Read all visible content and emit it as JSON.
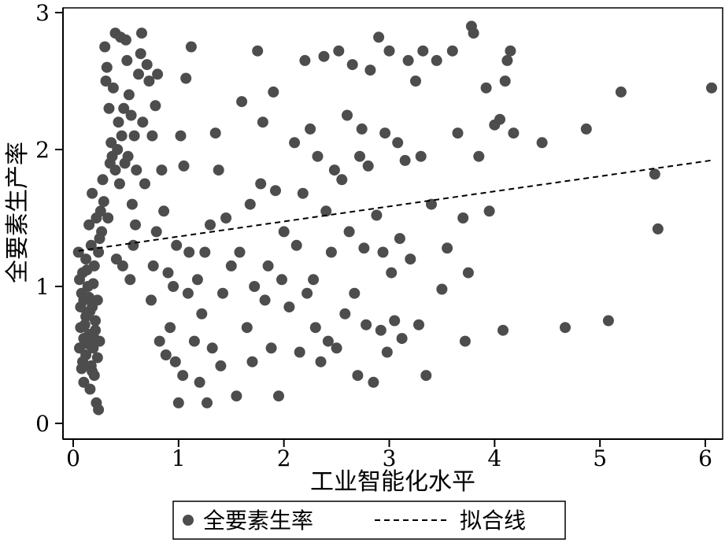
{
  "chart_data": {
    "type": "scatter",
    "title": "",
    "xlabel": "工业智能化水平",
    "ylabel": "全要素生产率",
    "xlim": [
      0,
      6.1
    ],
    "ylim": [
      0,
      3.0
    ],
    "xticks": [
      0,
      1,
      2,
      3,
      4,
      5,
      6
    ],
    "yticks": [
      0,
      1,
      2,
      3
    ],
    "xtick_labels": [
      "0",
      "1",
      "2",
      "3",
      "4",
      "5",
      "6"
    ],
    "ytick_labels": [
      "0",
      "1",
      "2",
      "3"
    ],
    "grid": false,
    "legend": {
      "position": "bottom",
      "entries": [
        {
          "label": "全要素生率",
          "marker": "dot"
        },
        {
          "label": "拟合线",
          "marker": "dashed-line"
        }
      ]
    },
    "point_color": "#4d4d4d",
    "fit_line": {
      "x": [
        0.05,
        6.05
      ],
      "y": [
        1.26,
        1.92
      ]
    },
    "series": [
      {
        "name": "全要素生率",
        "points": [
          [
            0.05,
            1.25
          ],
          [
            0.06,
            1.05
          ],
          [
            0.07,
            0.7
          ],
          [
            0.08,
            0.4
          ],
          [
            0.09,
            1.1
          ],
          [
            0.1,
            0.3
          ],
          [
            0.1,
            0.9
          ],
          [
            0.11,
            0.6
          ],
          [
            0.12,
            1.2
          ],
          [
            0.12,
            0.5
          ],
          [
            0.13,
            0.8
          ],
          [
            0.14,
            1.0
          ],
          [
            0.15,
            0.65
          ],
          [
            0.15,
            1.45
          ],
          [
            0.16,
            0.25
          ],
          [
            0.17,
            1.3
          ],
          [
            0.18,
            0.85
          ],
          [
            0.18,
            1.68
          ],
          [
            0.19,
            0.55
          ],
          [
            0.2,
            1.15
          ],
          [
            0.2,
            0.35
          ],
          [
            0.21,
            0.75
          ],
          [
            0.22,
            1.5
          ],
          [
            0.22,
            0.15
          ],
          [
            0.23,
            0.9
          ],
          [
            0.24,
            0.1
          ],
          [
            0.25,
            0.6
          ],
          [
            0.25,
            1.35
          ],
          [
            0.08,
            0.95
          ],
          [
            0.09,
            0.45
          ],
          [
            0.11,
            0.72
          ],
          [
            0.13,
            1.12
          ],
          [
            0.14,
            0.58
          ],
          [
            0.16,
            0.82
          ],
          [
            0.17,
            0.42
          ],
          [
            0.19,
            1.02
          ],
          [
            0.21,
            0.68
          ],
          [
            0.23,
            0.48
          ],
          [
            0.1,
            0.62
          ],
          [
            0.12,
            0.78
          ],
          [
            0.15,
            0.92
          ],
          [
            0.18,
            0.38
          ],
          [
            0.2,
            0.62
          ],
          [
            0.06,
            0.55
          ],
          [
            0.07,
            0.85
          ],
          [
            0.24,
            1.25
          ],
          [
            0.26,
            1.55
          ],
          [
            0.27,
            1.4
          ],
          [
            0.28,
            1.78
          ],
          [
            0.29,
            1.62
          ],
          [
            0.3,
            2.75
          ],
          [
            0.31,
            2.5
          ],
          [
            0.32,
            2.6
          ],
          [
            0.33,
            1.5
          ],
          [
            0.34,
            2.3
          ],
          [
            0.35,
            1.9
          ],
          [
            0.36,
            2.05
          ],
          [
            0.37,
            1.95
          ],
          [
            0.38,
            2.45
          ],
          [
            0.4,
            1.85
          ],
          [
            0.4,
            2.85
          ],
          [
            0.41,
            1.2
          ],
          [
            0.42,
            2.0
          ],
          [
            0.43,
            2.2
          ],
          [
            0.44,
            1.75
          ],
          [
            0.45,
            2.82
          ],
          [
            0.46,
            2.1
          ],
          [
            0.47,
            1.15
          ],
          [
            0.48,
            2.3
          ],
          [
            0.49,
            1.9
          ],
          [
            0.5,
            2.8
          ],
          [
            0.51,
            2.65
          ],
          [
            0.52,
            1.95
          ],
          [
            0.53,
            2.4
          ],
          [
            0.54,
            1.05
          ],
          [
            0.55,
            2.25
          ],
          [
            0.56,
            1.6
          ],
          [
            0.57,
            1.3
          ],
          [
            0.58,
            2.1
          ],
          [
            0.59,
            1.45
          ],
          [
            0.6,
            1.85
          ],
          [
            0.62,
            2.55
          ],
          [
            0.64,
            2.7
          ],
          [
            0.65,
            2.85
          ],
          [
            0.66,
            2.2
          ],
          [
            0.68,
            1.75
          ],
          [
            0.7,
            2.62
          ],
          [
            0.72,
            2.5
          ],
          [
            0.74,
            0.9
          ],
          [
            0.75,
            2.1
          ],
          [
            0.76,
            1.15
          ],
          [
            0.78,
            2.32
          ],
          [
            0.79,
            1.4
          ],
          [
            0.8,
            2.55
          ],
          [
            0.82,
            0.6
          ],
          [
            0.84,
            1.85
          ],
          [
            0.86,
            1.55
          ],
          [
            0.88,
            0.5
          ],
          [
            0.9,
            1.1
          ],
          [
            0.92,
            0.7
          ],
          [
            0.95,
            1.0
          ],
          [
            0.97,
            0.45
          ],
          [
            0.98,
            1.3
          ],
          [
            1.0,
            0.15
          ],
          [
            1.02,
            2.1
          ],
          [
            1.04,
            0.35
          ],
          [
            1.05,
            1.88
          ],
          [
            1.07,
            2.52
          ],
          [
            1.09,
            0.95
          ],
          [
            1.1,
            1.25
          ],
          [
            1.12,
            2.75
          ],
          [
            1.15,
            0.6
          ],
          [
            1.18,
            1.05
          ],
          [
            1.2,
            0.3
          ],
          [
            1.22,
            0.8
          ],
          [
            1.25,
            1.25
          ],
          [
            1.27,
            0.15
          ],
          [
            1.3,
            1.45
          ],
          [
            1.32,
            0.55
          ],
          [
            1.35,
            2.12
          ],
          [
            1.38,
            1.85
          ],
          [
            1.4,
            0.42
          ],
          [
            1.42,
            0.95
          ],
          [
            1.45,
            1.5
          ],
          [
            1.5,
            1.15
          ],
          [
            1.55,
            0.2
          ],
          [
            1.58,
            1.25
          ],
          [
            1.6,
            2.35
          ],
          [
            1.65,
            0.7
          ],
          [
            1.68,
            1.6
          ],
          [
            1.7,
            0.45
          ],
          [
            1.72,
            1.0
          ],
          [
            1.75,
            2.72
          ],
          [
            1.78,
            1.75
          ],
          [
            1.8,
            2.2
          ],
          [
            1.82,
            0.9
          ],
          [
            1.85,
            1.15
          ],
          [
            1.88,
            0.55
          ],
          [
            1.9,
            2.42
          ],
          [
            1.92,
            1.7
          ],
          [
            1.95,
            0.2
          ],
          [
            1.98,
            1.05
          ],
          [
            2.0,
            1.4
          ],
          [
            2.05,
            0.85
          ],
          [
            2.1,
            2.05
          ],
          [
            2.12,
            1.3
          ],
          [
            2.15,
            0.52
          ],
          [
            2.18,
            1.68
          ],
          [
            2.2,
            2.65
          ],
          [
            2.22,
            0.95
          ],
          [
            2.25,
            2.15
          ],
          [
            2.28,
            1.05
          ],
          [
            2.3,
            0.7
          ],
          [
            2.32,
            1.95
          ],
          [
            2.35,
            0.45
          ],
          [
            2.38,
            2.68
          ],
          [
            2.4,
            1.55
          ],
          [
            2.42,
            0.6
          ],
          [
            2.45,
            1.25
          ],
          [
            2.48,
            1.85
          ],
          [
            2.5,
            0.55
          ],
          [
            2.52,
            2.72
          ],
          [
            2.55,
            1.78
          ],
          [
            2.58,
            0.8
          ],
          [
            2.6,
            2.25
          ],
          [
            2.62,
            1.4
          ],
          [
            2.65,
            2.62
          ],
          [
            2.67,
            0.95
          ],
          [
            2.7,
            0.35
          ],
          [
            2.72,
            1.95
          ],
          [
            2.74,
            2.15
          ],
          [
            2.76,
            1.28
          ],
          [
            2.78,
            0.72
          ],
          [
            2.8,
            1.88
          ],
          [
            2.82,
            2.58
          ],
          [
            2.85,
            0.3
          ],
          [
            2.88,
            1.52
          ],
          [
            2.9,
            2.82
          ],
          [
            2.92,
            0.68
          ],
          [
            2.94,
            1.25
          ],
          [
            2.96,
            2.12
          ],
          [
            2.98,
            0.52
          ],
          [
            3.0,
            2.72
          ],
          [
            3.02,
            1.1
          ],
          [
            3.05,
            0.75
          ],
          [
            3.08,
            2.05
          ],
          [
            3.1,
            1.35
          ],
          [
            3.12,
            0.62
          ],
          [
            3.15,
            1.92
          ],
          [
            3.18,
            2.65
          ],
          [
            3.2,
            1.2
          ],
          [
            3.25,
            2.5
          ],
          [
            3.28,
            0.72
          ],
          [
            3.3,
            1.95
          ],
          [
            3.32,
            2.72
          ],
          [
            3.35,
            0.35
          ],
          [
            3.4,
            1.6
          ],
          [
            3.45,
            2.65
          ],
          [
            3.5,
            0.98
          ],
          [
            3.55,
            1.28
          ],
          [
            3.6,
            2.72
          ],
          [
            3.65,
            2.12
          ],
          [
            3.7,
            1.5
          ],
          [
            3.72,
            0.6
          ],
          [
            3.75,
            1.1
          ],
          [
            3.78,
            2.9
          ],
          [
            3.8,
            2.85
          ],
          [
            3.85,
            1.95
          ],
          [
            3.92,
            2.45
          ],
          [
            3.95,
            1.55
          ],
          [
            4.0,
            2.18
          ],
          [
            4.05,
            2.22
          ],
          [
            4.08,
            0.68
          ],
          [
            4.1,
            2.5
          ],
          [
            4.12,
            2.65
          ],
          [
            4.15,
            2.72
          ],
          [
            4.18,
            2.12
          ],
          [
            4.45,
            2.05
          ],
          [
            4.67,
            0.7
          ],
          [
            4.87,
            2.15
          ],
          [
            5.08,
            0.75
          ],
          [
            5.2,
            2.42
          ],
          [
            5.52,
            1.82
          ],
          [
            5.55,
            1.42
          ],
          [
            6.06,
            2.45
          ]
        ]
      }
    ]
  }
}
